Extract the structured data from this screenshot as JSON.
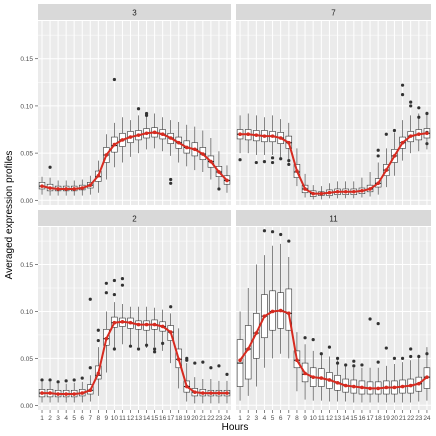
{
  "chart_data": {
    "type": "box",
    "xlabel": "Hours",
    "ylabel": "Averaged expression profiles",
    "x": [
      1,
      2,
      3,
      4,
      5,
      6,
      7,
      8,
      9,
      10,
      11,
      12,
      13,
      14,
      15,
      16,
      17,
      18,
      19,
      20,
      21,
      22,
      23,
      24
    ],
    "y_ticks": [
      "0.00",
      "0.05",
      "0.10",
      "0.15"
    ],
    "ylim": [
      -0.005,
      0.19
    ],
    "colors": {
      "mean_line": "#d62b20",
      "panel_bg": "#ebebeb",
      "strip_bg": "#d9d9d9",
      "box_fill": "#ffffff"
    },
    "panels": [
      {
        "label": "3",
        "mean": [
          0.015,
          0.013,
          0.012,
          0.012,
          0.012,
          0.013,
          0.016,
          0.026,
          0.048,
          0.059,
          0.064,
          0.067,
          0.069,
          0.071,
          0.072,
          0.07,
          0.066,
          0.061,
          0.056,
          0.054,
          0.049,
          0.041,
          0.03,
          0.021
        ],
        "q1": [
          0.012,
          0.01,
          0.01,
          0.01,
          0.01,
          0.011,
          0.013,
          0.02,
          0.04,
          0.051,
          0.057,
          0.061,
          0.064,
          0.066,
          0.067,
          0.065,
          0.06,
          0.055,
          0.05,
          0.047,
          0.043,
          0.035,
          0.025,
          0.017
        ],
        "med": [
          0.015,
          0.013,
          0.012,
          0.012,
          0.012,
          0.013,
          0.016,
          0.025,
          0.048,
          0.058,
          0.064,
          0.067,
          0.069,
          0.071,
          0.072,
          0.07,
          0.066,
          0.061,
          0.056,
          0.054,
          0.049,
          0.041,
          0.03,
          0.021
        ],
        "q3": [
          0.019,
          0.017,
          0.015,
          0.015,
          0.015,
          0.016,
          0.019,
          0.031,
          0.056,
          0.067,
          0.071,
          0.073,
          0.074,
          0.076,
          0.077,
          0.075,
          0.071,
          0.067,
          0.063,
          0.061,
          0.056,
          0.047,
          0.036,
          0.026
        ],
        "lo": [
          0.006,
          0.005,
          0.005,
          0.005,
          0.005,
          0.005,
          0.006,
          0.008,
          0.022,
          0.035,
          0.04,
          0.046,
          0.05,
          0.054,
          0.055,
          0.052,
          0.047,
          0.04,
          0.036,
          0.032,
          0.03,
          0.022,
          0.013,
          0.008
        ],
        "hi": [
          0.025,
          0.024,
          0.021,
          0.021,
          0.021,
          0.022,
          0.026,
          0.042,
          0.07,
          0.082,
          0.088,
          0.085,
          0.09,
          0.09,
          0.092,
          0.088,
          0.085,
          0.083,
          0.08,
          0.078,
          0.074,
          0.066,
          0.052,
          0.037
        ],
        "outliers": [
          [
            2,
            0.035
          ],
          [
            10,
            0.128
          ],
          [
            13,
            0.097
          ],
          [
            14,
            0.092
          ],
          [
            14,
            0.09
          ],
          [
            17,
            0.022
          ],
          [
            17,
            0.018
          ],
          [
            23,
            0.012
          ]
        ]
      },
      {
        "label": "7",
        "mean": [
          0.07,
          0.07,
          0.069,
          0.068,
          0.068,
          0.066,
          0.061,
          0.031,
          0.012,
          0.007,
          0.007,
          0.008,
          0.009,
          0.009,
          0.009,
          0.01,
          0.012,
          0.018,
          0.032,
          0.047,
          0.061,
          0.068,
          0.07,
          0.071
        ],
        "q1": [
          0.065,
          0.064,
          0.063,
          0.062,
          0.062,
          0.06,
          0.055,
          0.024,
          0.008,
          0.004,
          0.005,
          0.005,
          0.006,
          0.006,
          0.006,
          0.007,
          0.009,
          0.014,
          0.026,
          0.04,
          0.055,
          0.062,
          0.064,
          0.066
        ],
        "med": [
          0.07,
          0.07,
          0.069,
          0.068,
          0.068,
          0.066,
          0.061,
          0.03,
          0.012,
          0.007,
          0.007,
          0.008,
          0.009,
          0.009,
          0.009,
          0.01,
          0.012,
          0.018,
          0.032,
          0.047,
          0.061,
          0.068,
          0.07,
          0.071
        ],
        "q3": [
          0.075,
          0.075,
          0.074,
          0.074,
          0.073,
          0.072,
          0.068,
          0.038,
          0.016,
          0.01,
          0.009,
          0.011,
          0.012,
          0.012,
          0.012,
          0.013,
          0.016,
          0.023,
          0.038,
          0.054,
          0.067,
          0.073,
          0.075,
          0.076
        ],
        "lo": [
          0.05,
          0.05,
          0.048,
          0.048,
          0.048,
          0.045,
          0.04,
          0.015,
          0.003,
          0.001,
          0.001,
          0.002,
          0.002,
          0.002,
          0.002,
          0.003,
          0.004,
          0.006,
          0.014,
          0.026,
          0.042,
          0.05,
          0.052,
          0.054
        ],
        "hi": [
          0.09,
          0.092,
          0.09,
          0.088,
          0.09,
          0.086,
          0.082,
          0.055,
          0.028,
          0.016,
          0.015,
          0.018,
          0.02,
          0.02,
          0.02,
          0.024,
          0.03,
          0.04,
          0.055,
          0.072,
          0.085,
          0.09,
          0.092,
          0.094
        ],
        "outliers": [
          [
            1,
            0.043
          ],
          [
            3,
            0.04
          ],
          [
            4,
            0.041
          ],
          [
            5,
            0.04
          ],
          [
            5,
            0.045
          ],
          [
            6,
            0.044
          ],
          [
            7,
            0.042
          ],
          [
            7,
            0.038
          ],
          [
            18,
            0.047
          ],
          [
            18,
            0.053
          ],
          [
            19,
            0.07
          ],
          [
            20,
            0.074
          ],
          [
            21,
            0.122
          ],
          [
            21,
            0.112
          ],
          [
            22,
            0.104
          ],
          [
            22,
            0.1
          ],
          [
            23,
            0.098
          ],
          [
            23,
            0.088
          ],
          [
            24,
            0.092
          ],
          [
            24,
            0.072
          ],
          [
            24,
            0.06
          ]
        ]
      },
      {
        "label": "2",
        "mean": [
          0.013,
          0.013,
          0.012,
          0.012,
          0.012,
          0.013,
          0.016,
          0.034,
          0.071,
          0.088,
          0.089,
          0.088,
          0.086,
          0.086,
          0.086,
          0.084,
          0.078,
          0.049,
          0.02,
          0.014,
          0.013,
          0.013,
          0.013,
          0.013
        ],
        "q1": [
          0.009,
          0.009,
          0.009,
          0.009,
          0.009,
          0.01,
          0.012,
          0.028,
          0.064,
          0.083,
          0.084,
          0.082,
          0.081,
          0.08,
          0.081,
          0.079,
          0.069,
          0.04,
          0.014,
          0.01,
          0.01,
          0.01,
          0.01,
          0.01
        ],
        "med": [
          0.013,
          0.013,
          0.012,
          0.012,
          0.012,
          0.013,
          0.016,
          0.032,
          0.071,
          0.088,
          0.089,
          0.088,
          0.086,
          0.086,
          0.086,
          0.084,
          0.078,
          0.049,
          0.02,
          0.014,
          0.013,
          0.013,
          0.013,
          0.013
        ],
        "q3": [
          0.017,
          0.017,
          0.016,
          0.016,
          0.016,
          0.017,
          0.022,
          0.042,
          0.081,
          0.094,
          0.093,
          0.093,
          0.09,
          0.09,
          0.091,
          0.089,
          0.085,
          0.06,
          0.026,
          0.018,
          0.017,
          0.016,
          0.016,
          0.016
        ],
        "lo": [
          0.003,
          0.003,
          0.003,
          0.003,
          0.003,
          0.003,
          0.004,
          0.01,
          0.035,
          0.06,
          0.065,
          0.063,
          0.062,
          0.061,
          0.062,
          0.058,
          0.045,
          0.018,
          0.004,
          0.002,
          0.002,
          0.002,
          0.002,
          0.002
        ],
        "hi": [
          0.025,
          0.025,
          0.023,
          0.023,
          0.024,
          0.025,
          0.032,
          0.062,
          0.1,
          0.11,
          0.108,
          0.105,
          0.105,
          0.105,
          0.104,
          0.102,
          0.098,
          0.082,
          0.045,
          0.03,
          0.028,
          0.028,
          0.026,
          0.026
        ],
        "outliers": [
          [
            1,
            0.027
          ],
          [
            2,
            0.027
          ],
          [
            3,
            0.025
          ],
          [
            4,
            0.026
          ],
          [
            5,
            0.027
          ],
          [
            6,
            0.029
          ],
          [
            7,
            0.04
          ],
          [
            7,
            0.113
          ],
          [
            8,
            0.08
          ],
          [
            8,
            0.069
          ],
          [
            9,
            0.12
          ],
          [
            9,
            0.13
          ],
          [
            10,
            0.133
          ],
          [
            10,
            0.118
          ],
          [
            10,
            0.06
          ],
          [
            11,
            0.135
          ],
          [
            11,
            0.128
          ],
          [
            12,
            0.063
          ],
          [
            13,
            0.06
          ],
          [
            14,
            0.064
          ],
          [
            15,
            0.06
          ],
          [
            15,
            0.057
          ],
          [
            16,
            0.066
          ],
          [
            17,
            0.105
          ],
          [
            19,
            0.05
          ],
          [
            19,
            0.048
          ],
          [
            20,
            0.045
          ],
          [
            21,
            0.046
          ],
          [
            22,
            0.04
          ],
          [
            23,
            0.042
          ],
          [
            24,
            0.033
          ]
        ]
      },
      {
        "label": "11",
        "mean": [
          0.048,
          0.06,
          0.077,
          0.095,
          0.1,
          0.101,
          0.098,
          0.048,
          0.034,
          0.03,
          0.029,
          0.027,
          0.024,
          0.021,
          0.02,
          0.019,
          0.018,
          0.018,
          0.019,
          0.019,
          0.02,
          0.021,
          0.023,
          0.03
        ],
        "q1": [
          0.02,
          0.028,
          0.05,
          0.072,
          0.08,
          0.082,
          0.08,
          0.04,
          0.025,
          0.02,
          0.02,
          0.018,
          0.016,
          0.014,
          0.013,
          0.012,
          0.012,
          0.012,
          0.012,
          0.012,
          0.013,
          0.013,
          0.015,
          0.018
        ],
        "med": [
          0.045,
          0.06,
          0.077,
          0.095,
          0.1,
          0.101,
          0.098,
          0.048,
          0.033,
          0.03,
          0.029,
          0.027,
          0.024,
          0.021,
          0.02,
          0.019,
          0.018,
          0.018,
          0.019,
          0.019,
          0.02,
          0.021,
          0.023,
          0.03
        ],
        "q3": [
          0.07,
          0.085,
          0.098,
          0.118,
          0.122,
          0.12,
          0.124,
          0.058,
          0.045,
          0.04,
          0.039,
          0.035,
          0.032,
          0.028,
          0.027,
          0.026,
          0.025,
          0.025,
          0.026,
          0.026,
          0.027,
          0.028,
          0.03,
          0.04
        ],
        "lo": [
          0.005,
          0.01,
          0.02,
          0.04,
          0.05,
          0.055,
          0.05,
          0.015,
          0.006,
          0.005,
          0.005,
          0.004,
          0.004,
          0.004,
          0.003,
          0.003,
          0.003,
          0.003,
          0.003,
          0.003,
          0.003,
          0.003,
          0.004,
          0.005
        ],
        "hi": [
          0.1,
          0.125,
          0.15,
          0.16,
          0.17,
          0.172,
          0.158,
          0.078,
          0.065,
          0.058,
          0.056,
          0.052,
          0.048,
          0.042,
          0.04,
          0.04,
          0.04,
          0.04,
          0.042,
          0.044,
          0.046,
          0.048,
          0.054,
          0.062
        ],
        "outliers": [
          [
            4,
            0.186
          ],
          [
            5,
            0.185
          ],
          [
            6,
            0.182
          ],
          [
            7,
            0.175
          ],
          [
            9,
            0.072
          ],
          [
            10,
            0.07
          ],
          [
            11,
            0.055
          ],
          [
            12,
            0.062
          ],
          [
            13,
            0.05
          ],
          [
            13,
            0.045
          ],
          [
            14,
            0.043
          ],
          [
            15,
            0.042
          ],
          [
            15,
            0.047
          ],
          [
            16,
            0.043
          ],
          [
            17,
            0.092
          ],
          [
            18,
            0.087
          ],
          [
            18,
            0.046
          ],
          [
            19,
            0.061
          ],
          [
            20,
            0.05
          ],
          [
            21,
            0.05
          ],
          [
            22,
            0.052
          ],
          [
            22,
            0.06
          ],
          [
            23,
            0.052
          ],
          [
            24,
            0.055
          ]
        ]
      }
    ]
  }
}
